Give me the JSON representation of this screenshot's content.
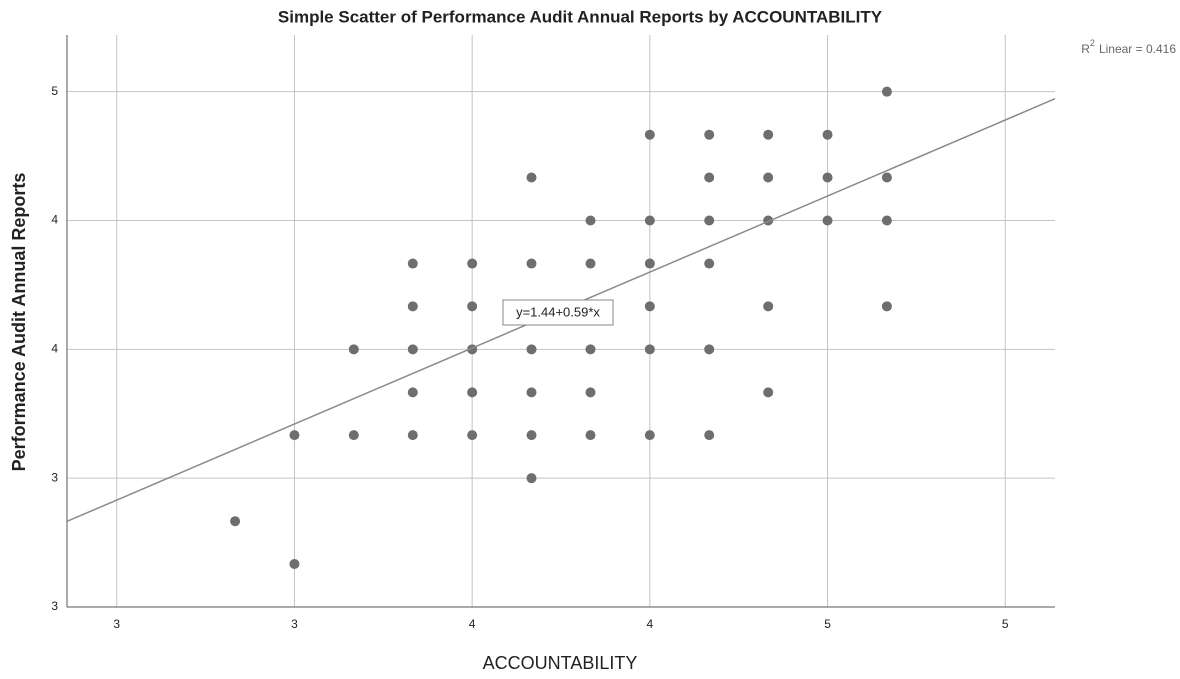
{
  "chart_data": {
    "type": "scatter",
    "title": "Simple Scatter of Performance Audit Annual Reports by ACCOUNTABILITY",
    "x_label": "ACCOUNTABILITY",
    "y_label": "Performance Audit Annual Reports",
    "color": "#6e6e6e",
    "grid": true,
    "xlim": [
      2.36,
      5.14
    ],
    "ylim": [
      2.5,
      4.72
    ],
    "xticks": [
      {
        "value": 2.5,
        "label": "3"
      },
      3,
      {
        "value": 3.5,
        "label": "4"
      },
      4,
      {
        "value": 4.5,
        "label": "5"
      },
      5
    ],
    "yticks": [
      {
        "value": 2.5,
        "label": "3"
      },
      3,
      {
        "value": 3.5,
        "label": "4"
      },
      4,
      {
        "value": 4.5,
        "label": "5"
      }
    ],
    "x": [
      2.833,
      3.0,
      3.0,
      3.167,
      3.167,
      3.333,
      3.333,
      3.333,
      3.333,
      3.333,
      3.5,
      3.5,
      3.5,
      3.5,
      3.5,
      3.667,
      3.667,
      3.667,
      3.667,
      3.667,
      3.667,
      3.833,
      3.833,
      3.833,
      3.833,
      3.833,
      4.0,
      4.0,
      4.0,
      4.0,
      4.0,
      4.0,
      4.167,
      4.167,
      4.167,
      4.167,
      4.167,
      4.167,
      4.333,
      4.333,
      4.333,
      4.333,
      4.333,
      4.5,
      4.5,
      4.5,
      4.667,
      4.667,
      4.667,
      4.667
    ],
    "values": [
      2.833,
      2.667,
      3.167,
      3.167,
      3.5,
      3.833,
      3.667,
      3.5,
      3.333,
      3.167,
      3.833,
      3.667,
      3.5,
      3.333,
      3.167,
      4.167,
      3.833,
      3.5,
      3.333,
      3.167,
      3.0,
      4.0,
      3.833,
      3.5,
      3.333,
      3.167,
      4.333,
      4.0,
      3.833,
      3.667,
      3.5,
      3.167,
      4.333,
      4.167,
      4.0,
      3.833,
      3.5,
      3.167,
      4.333,
      4.167,
      4.0,
      3.667,
      3.333,
      4.333,
      4.167,
      4.0,
      4.5,
      4.167,
      4.0,
      3.667
    ],
    "fit": {
      "intercept": 1.44,
      "slope": 0.59,
      "color": "#8a8a8a",
      "label": "y=1.44+0.59*x",
      "r_squared_text": [
        "R",
        "2",
        "Linear = 0.416"
      ]
    }
  }
}
